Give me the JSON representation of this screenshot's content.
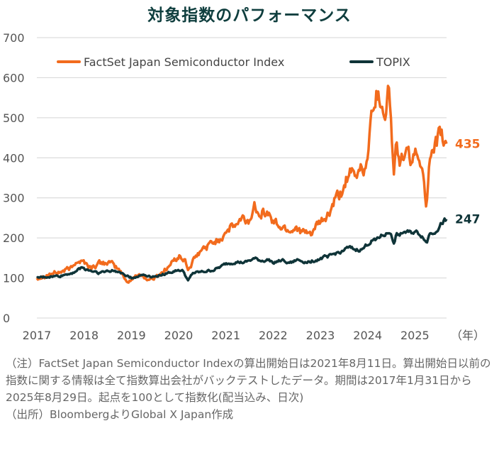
{
  "title": "対象指数のパフォーマンス",
  "chart_data": {
    "type": "line",
    "title": "対象指数のパフォーマンス",
    "xlabel": "",
    "ylabel": "",
    "x_ticks": [
      "2017",
      "2018",
      "2019",
      "2020",
      "2021",
      "2022",
      "2023",
      "2024",
      "2025"
    ],
    "x_unit_label": "（年）",
    "xlim": [
      2017.0,
      2025.67
    ],
    "ylim": [
      0,
      700
    ],
    "y_ticks": [
      0,
      100,
      200,
      300,
      400,
      500,
      600,
      700
    ],
    "grid": "horizontal",
    "legend_position": "top",
    "series": [
      {
        "name": "FactSet Japan Semiconductor Index",
        "color": "#f26b1d",
        "end_label": "435",
        "x": [
          2017.0,
          2017.25,
          2017.5,
          2017.75,
          2017.83,
          2018.0,
          2018.15,
          2018.3,
          2018.5,
          2018.75,
          2018.9,
          2018.98,
          2019.2,
          2019.35,
          2019.5,
          2019.6,
          2019.8,
          2020.0,
          2020.15,
          2020.2,
          2020.3,
          2020.5,
          2020.75,
          2020.9,
          2021.0,
          2021.2,
          2021.35,
          2021.5,
          2021.6,
          2021.75,
          2021.9,
          2022.0,
          2022.2,
          2022.4,
          2022.5,
          2022.6,
          2022.75,
          2022.9,
          2023.0,
          2023.2,
          2023.3,
          2023.45,
          2023.55,
          2023.65,
          2023.75,
          2023.85,
          2023.95,
          2024.05,
          2024.1,
          2024.2,
          2024.3,
          2024.38,
          2024.45,
          2024.5,
          2024.55,
          2024.6,
          2024.7,
          2024.8,
          2024.9,
          2025.0,
          2025.1,
          2025.15,
          2025.2,
          2025.25,
          2025.3,
          2025.4,
          2025.5,
          2025.55,
          2025.6,
          2025.67
        ],
        "y": [
          100,
          110,
          115,
          125,
          145,
          140,
          125,
          135,
          140,
          120,
          90,
          95,
          110,
          95,
          100,
          110,
          130,
          155,
          140,
          120,
          140,
          170,
          190,
          200,
          220,
          230,
          245,
          240,
          280,
          270,
          260,
          240,
          225,
          220,
          230,
          215,
          205,
          225,
          235,
          260,
          290,
          310,
          350,
          360,
          340,
          380,
          370,
          460,
          530,
          565,
          540,
          520,
          580,
          480,
          360,
          420,
          390,
          410,
          395,
          405,
          390,
          400,
          340,
          280,
          380,
          400,
          450,
          455,
          440,
          435
        ]
      },
      {
        "name": "TOPIX",
        "color": "#0f3438",
        "end_label": "247",
        "x": [
          2017.0,
          2017.25,
          2017.5,
          2017.75,
          2017.95,
          2018.1,
          2018.3,
          2018.6,
          2018.8,
          2018.95,
          2019.0,
          2019.25,
          2019.5,
          2019.75,
          2020.0,
          2020.1,
          2020.2,
          2020.3,
          2020.5,
          2020.75,
          2020.9,
          2021.0,
          2021.2,
          2021.4,
          2021.6,
          2021.75,
          2021.9,
          2022.0,
          2022.2,
          2022.4,
          2022.5,
          2022.7,
          2022.9,
          2023.0,
          2023.2,
          2023.4,
          2023.6,
          2023.75,
          2023.9,
          2024.0,
          2024.2,
          2024.4,
          2024.5,
          2024.55,
          2024.6,
          2024.75,
          2024.9,
          2025.0,
          2025.1,
          2025.2,
          2025.25,
          2025.3,
          2025.4,
          2025.5,
          2025.6,
          2025.67
        ],
        "y": [
          100,
          103,
          105,
          113,
          125,
          120,
          113,
          118,
          113,
          104,
          100,
          108,
          103,
          112,
          120,
          117,
          92,
          112,
          115,
          120,
          128,
          135,
          140,
          138,
          148,
          143,
          145,
          140,
          143,
          138,
          145,
          140,
          145,
          148,
          155,
          165,
          175,
          170,
          172,
          185,
          200,
          210,
          215,
          180,
          205,
          215,
          212,
          215,
          210,
          200,
          185,
          210,
          215,
          225,
          240,
          247
        ]
      }
    ]
  },
  "notes": {
    "line1": "（注）FactSet Japan Semiconductor Indexの算出開始日は2021年8月11日。算出開始日以前の指数に関する情報は全て指数算出会社がバックテストしたデータ。期間は2017年1月31日から2025年8月29日。起点を100として指数化(配当込み、日次)",
    "line2": "（出所）BloombergよりGlobal X Japan作成"
  }
}
